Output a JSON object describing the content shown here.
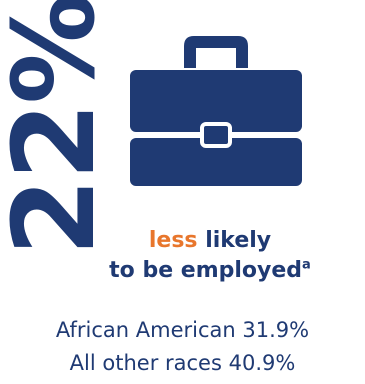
{
  "stat": {
    "value": "22%"
  },
  "icon": {
    "name": "briefcase-icon"
  },
  "headline": {
    "accent": "less",
    "rest": " likely",
    "line2": "to be employed",
    "footnote_mark": "a"
  },
  "groups": [
    {
      "label": "African American",
      "value": "31.9%"
    },
    {
      "label": "All other races",
      "value": "40.9%"
    }
  ],
  "colors": {
    "primary": "#1f3a73",
    "accent": "#e8762c"
  }
}
